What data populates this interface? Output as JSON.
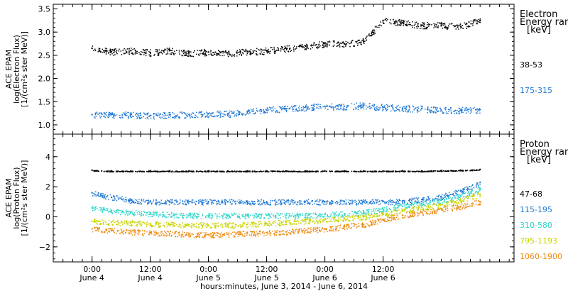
{
  "chart_data": [
    {
      "type": "scatter",
      "panel": "electron",
      "ylabel_lines": [
        "ACE EPAM",
        "log(Electron Flux)",
        "[1/(cm²s ster MeV)]"
      ],
      "ylim": [
        0.8,
        3.6
      ],
      "yticks": [
        1.0,
        1.5,
        2.0,
        2.5,
        3.0,
        3.5
      ],
      "ytick_labels": [
        "1.0",
        "1.5",
        "2.0",
        "2.5",
        "3.0",
        "3.5"
      ],
      "legend_title_lines": [
        "Electron",
        "Energy range",
        "[keV]"
      ],
      "series": [
        {
          "name": "38-53",
          "color": "#000000",
          "x": [
            0,
            4,
            8,
            12,
            16,
            20,
            24,
            28,
            32,
            36,
            40,
            44,
            48,
            52,
            56,
            60,
            64,
            68,
            72,
            76,
            80
          ],
          "y": [
            2.65,
            2.58,
            2.6,
            2.56,
            2.6,
            2.55,
            2.57,
            2.55,
            2.58,
            2.6,
            2.65,
            2.7,
            2.75,
            2.75,
            2.8,
            3.25,
            3.2,
            3.15,
            3.15,
            3.12,
            3.25
          ]
        },
        {
          "name": "175-315",
          "color": "#1f78d4",
          "x": [
            0,
            4,
            8,
            12,
            16,
            20,
            24,
            28,
            32,
            36,
            40,
            44,
            48,
            52,
            56,
            60,
            64,
            68,
            72,
            76,
            80
          ],
          "y": [
            1.22,
            1.22,
            1.22,
            1.2,
            1.22,
            1.22,
            1.24,
            1.24,
            1.28,
            1.32,
            1.35,
            1.38,
            1.4,
            1.4,
            1.42,
            1.38,
            1.36,
            1.35,
            1.32,
            1.32,
            1.33
          ]
        }
      ]
    },
    {
      "type": "scatter",
      "panel": "proton",
      "ylabel_lines": [
        "ACE EPAM",
        "log(Proton Flux)",
        "[1/(cm²s ster MeV)]"
      ],
      "ylim": [
        -3,
        5.5
      ],
      "yticks": [
        -2,
        0,
        2,
        4
      ],
      "ytick_labels": [
        "−2",
        "0",
        "2",
        "4"
      ],
      "legend_title_lines": [
        "Proton",
        "Energy range",
        "[keV]"
      ],
      "series": [
        {
          "name": "47-68",
          "color": "#000000",
          "x": [
            0,
            4,
            8,
            12,
            16,
            20,
            24,
            28,
            32,
            36,
            40,
            44,
            48,
            52,
            56,
            60,
            64,
            68,
            72,
            76,
            80
          ],
          "y": [
            3.1,
            3.05,
            3.05,
            3.05,
            3.05,
            3.05,
            3.05,
            3.05,
            3.05,
            3.05,
            3.05,
            3.05,
            3.05,
            3.05,
            3.05,
            3.05,
            3.05,
            3.05,
            3.08,
            3.1,
            3.15
          ]
        },
        {
          "name": "115-195",
          "color": "#1f78d4",
          "x": [
            0,
            4,
            8,
            12,
            16,
            20,
            24,
            28,
            32,
            36,
            40,
            44,
            48,
            52,
            56,
            60,
            64,
            68,
            72,
            76,
            80
          ],
          "y": [
            1.6,
            1.3,
            1.1,
            1.0,
            1.0,
            1.0,
            1.0,
            1.0,
            1.0,
            1.0,
            1.0,
            1.0,
            1.0,
            1.0,
            1.0,
            1.0,
            1.05,
            1.15,
            1.35,
            1.7,
            2.3
          ]
        },
        {
          "name": "310-580",
          "color": "#2fd6c8",
          "x": [
            0,
            4,
            8,
            12,
            16,
            20,
            24,
            28,
            32,
            36,
            40,
            44,
            48,
            52,
            56,
            60,
            64,
            68,
            72,
            76,
            80
          ],
          "y": [
            0.6,
            0.4,
            0.3,
            0.2,
            0.15,
            0.1,
            0.1,
            0.1,
            0.1,
            0.1,
            0.1,
            0.1,
            0.15,
            0.2,
            0.3,
            0.5,
            0.7,
            0.9,
            1.1,
            1.4,
            1.9
          ]
        },
        {
          "name": "795-1193",
          "color": "#c8d400",
          "x": [
            0,
            4,
            8,
            12,
            16,
            20,
            24,
            28,
            32,
            36,
            40,
            44,
            48,
            52,
            56,
            60,
            64,
            68,
            72,
            76,
            80
          ],
          "y": [
            -0.3,
            -0.35,
            -0.4,
            -0.45,
            -0.5,
            -0.5,
            -0.55,
            -0.55,
            -0.5,
            -0.45,
            -0.35,
            -0.3,
            -0.2,
            -0.1,
            0.0,
            0.2,
            0.4,
            0.6,
            0.8,
            1.1,
            1.5
          ]
        },
        {
          "name": "1060-1900",
          "color": "#ef8a10",
          "x": [
            0,
            4,
            8,
            12,
            16,
            20,
            24,
            28,
            32,
            36,
            40,
            44,
            48,
            52,
            56,
            60,
            64,
            68,
            72,
            76,
            80
          ],
          "y": [
            -0.8,
            -0.9,
            -1.0,
            -1.05,
            -1.1,
            -1.15,
            -1.2,
            -1.15,
            -1.1,
            -1.05,
            -1.0,
            -0.9,
            -0.8,
            -0.65,
            -0.5,
            -0.2,
            0.1,
            0.3,
            0.5,
            0.7,
            1.0
          ]
        }
      ]
    }
  ],
  "x_axis": {
    "xlim": [
      -8,
      87
    ],
    "ticks": [
      {
        "x": 0,
        "time": "0:00",
        "date": "June 4"
      },
      {
        "x": 12,
        "time": "12:00",
        "date": "June 4"
      },
      {
        "x": 24,
        "time": "0:00",
        "date": "June 5"
      },
      {
        "x": 36,
        "time": "12:00",
        "date": "June 5"
      },
      {
        "x": 48,
        "time": "0:00",
        "date": "June 6"
      },
      {
        "x": 60,
        "time": "12:00",
        "date": "June 6"
      }
    ],
    "label": "hours:minutes, June  3, 2014 - June  6, 2014"
  }
}
